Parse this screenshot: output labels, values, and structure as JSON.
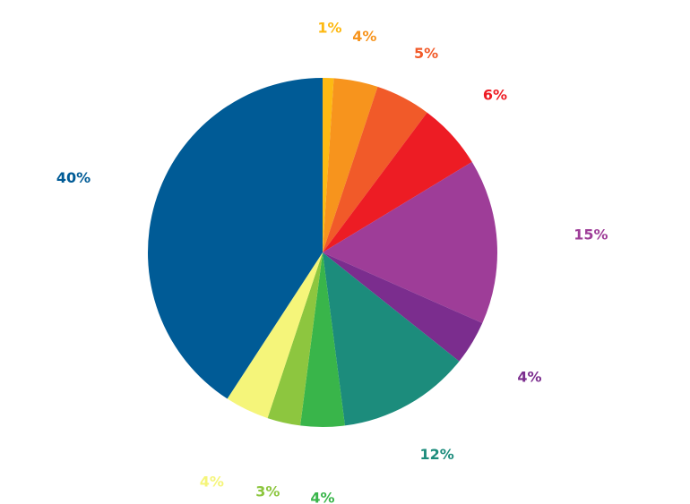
{
  "chart_data": {
    "type": "pie",
    "title": "",
    "slices": [
      {
        "label": "1%",
        "value": 1,
        "color": "#FDB913"
      },
      {
        "label": "4%",
        "value": 4,
        "color": "#F7941D"
      },
      {
        "label": "5%",
        "value": 5,
        "color": "#F15A29"
      },
      {
        "label": "6%",
        "value": 6,
        "color": "#ED1C24"
      },
      {
        "label": "15%",
        "value": 15,
        "color": "#9E3D98"
      },
      {
        "label": "4%",
        "value": 4,
        "color": "#7B2D8E"
      },
      {
        "label": "12%",
        "value": 12,
        "color": "#1C8C7C"
      },
      {
        "label": "4%",
        "value": 4,
        "color": "#39B54A"
      },
      {
        "label": "3%",
        "value": 3,
        "color": "#8DC63F"
      },
      {
        "label": "4%",
        "value": 4,
        "color": "#F5F57A"
      },
      {
        "label": "40%",
        "value": 40,
        "color": "#005B96"
      }
    ]
  }
}
